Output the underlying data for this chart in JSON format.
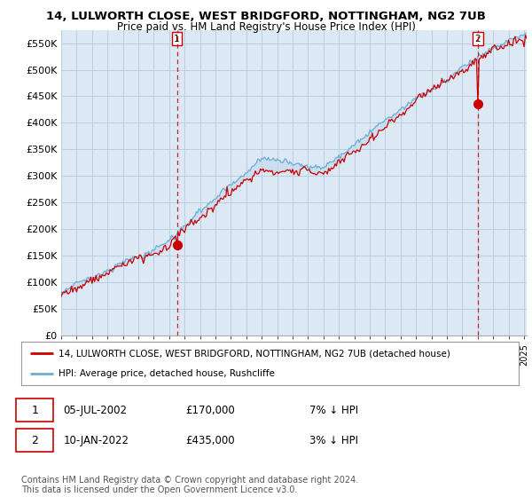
{
  "title_line1": "14, LULWORTH CLOSE, WEST BRIDGFORD, NOTTINGHAM, NG2 7UB",
  "title_line2": "Price paid vs. HM Land Registry's House Price Index (HPI)",
  "ylim": [
    0,
    575000
  ],
  "yticks": [
    0,
    50000,
    100000,
    150000,
    200000,
    250000,
    300000,
    350000,
    400000,
    450000,
    500000,
    550000
  ],
  "ytick_labels": [
    "£0",
    "£50K",
    "£100K",
    "£150K",
    "£200K",
    "£250K",
    "£300K",
    "£350K",
    "£400K",
    "£450K",
    "£500K",
    "£550K"
  ],
  "hpi_color": "#6baed6",
  "hpi_fill_color": "#c6dbef",
  "price_color": "#cc0000",
  "marker_color": "#cc0000",
  "sale1_price": 170000,
  "sale2_price": 435000,
  "legend_line1": "14, LULWORTH CLOSE, WEST BRIDGFORD, NOTTINGHAM, NG2 7UB (detached house)",
  "legend_line2": "HPI: Average price, detached house, Rushcliffe",
  "note1_date": "05-JUL-2002",
  "note1_price": "£170,000",
  "note1_hpi": "7% ↓ HPI",
  "note2_date": "10-JAN-2022",
  "note2_price": "£435,000",
  "note2_hpi": "3% ↓ HPI",
  "footer": "Contains HM Land Registry data © Crown copyright and database right 2024.\nThis data is licensed under the Open Government Licence v3.0.",
  "chart_bg": "#dce9f5",
  "bg_color": "#ffffff",
  "grid_color": "#b8cfe0"
}
